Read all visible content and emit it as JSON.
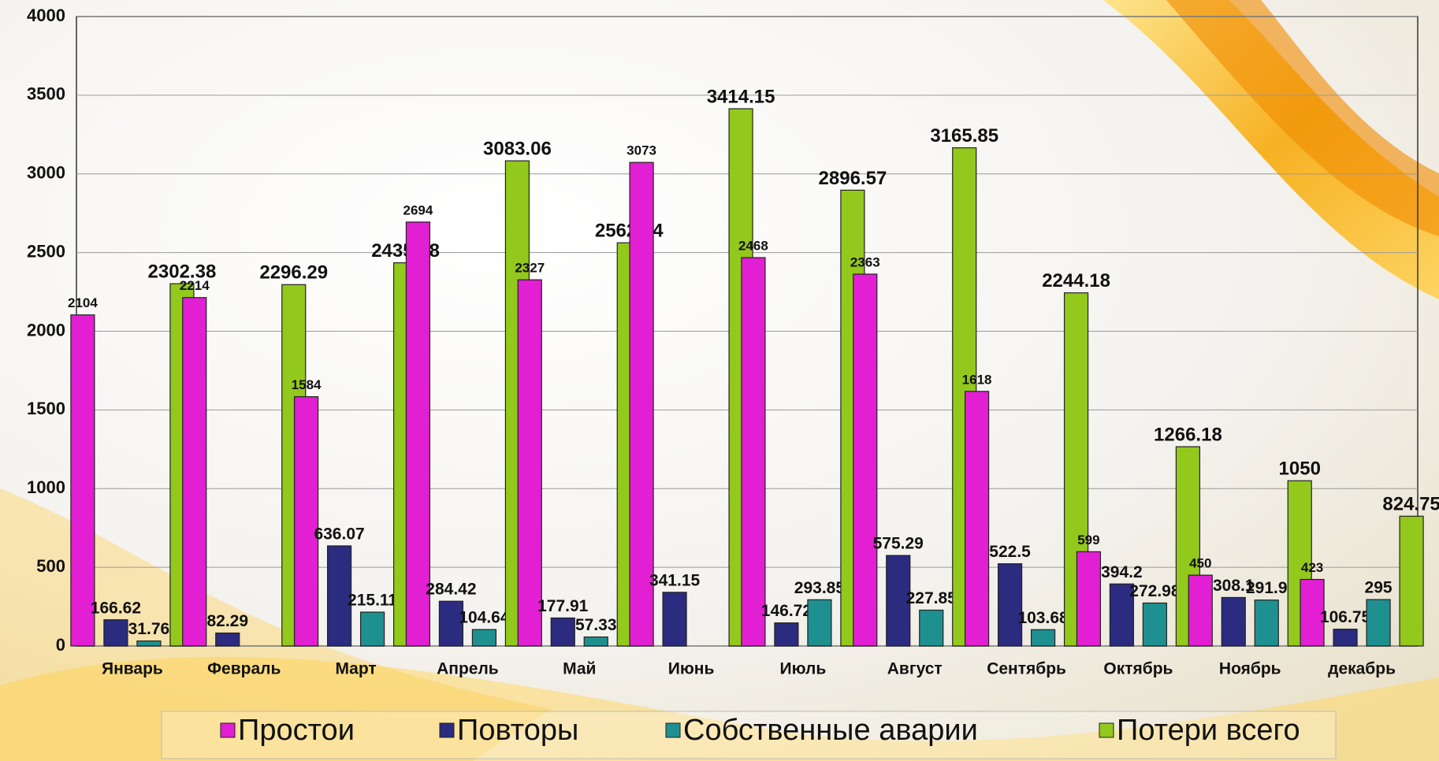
{
  "chart_data": {
    "type": "bar",
    "categories": [
      "Январь",
      "Февраль",
      "Март",
      "Апрель",
      "Май",
      "Июнь",
      "Июль",
      "Август",
      "Сентябрь",
      "Октябрь",
      "Ноябрь",
      "декабрь"
    ],
    "series": [
      {
        "name": "Простои",
        "color": "#e21fd2",
        "values": [
          2104,
          2214,
          1584,
          2694,
          2327,
          3073,
          2468,
          2363,
          1618,
          599,
          450,
          423
        ]
      },
      {
        "name": "Повторы",
        "color": "#2b2b80",
        "values": [
          166.62,
          82.29,
          636.07,
          284.42,
          177.91,
          341.15,
          146.72,
          575.29,
          522.5,
          394.2,
          308.1,
          106.75
        ]
      },
      {
        "name": "Собственные аварии",
        "color": "#1f9090",
        "values": [
          31.76,
          0,
          215.11,
          104.64,
          57.33,
          0,
          293.85,
          227.85,
          103.68,
          272.98,
          291.9,
          295
        ]
      },
      {
        "name": "Потери всего",
        "color": "#93c81c",
        "values": [
          2302.38,
          2296.29,
          2435.18,
          3083.06,
          2562.24,
          3414.15,
          2896.57,
          3165.85,
          2244.18,
          1266.18,
          1050,
          824.75
        ]
      }
    ],
    "ylim": [
      0,
      4000
    ],
    "yticks": [
      0,
      500,
      1000,
      1500,
      2000,
      2500,
      3000,
      3500,
      4000
    ],
    "grid": true,
    "legend": "bottom"
  }
}
